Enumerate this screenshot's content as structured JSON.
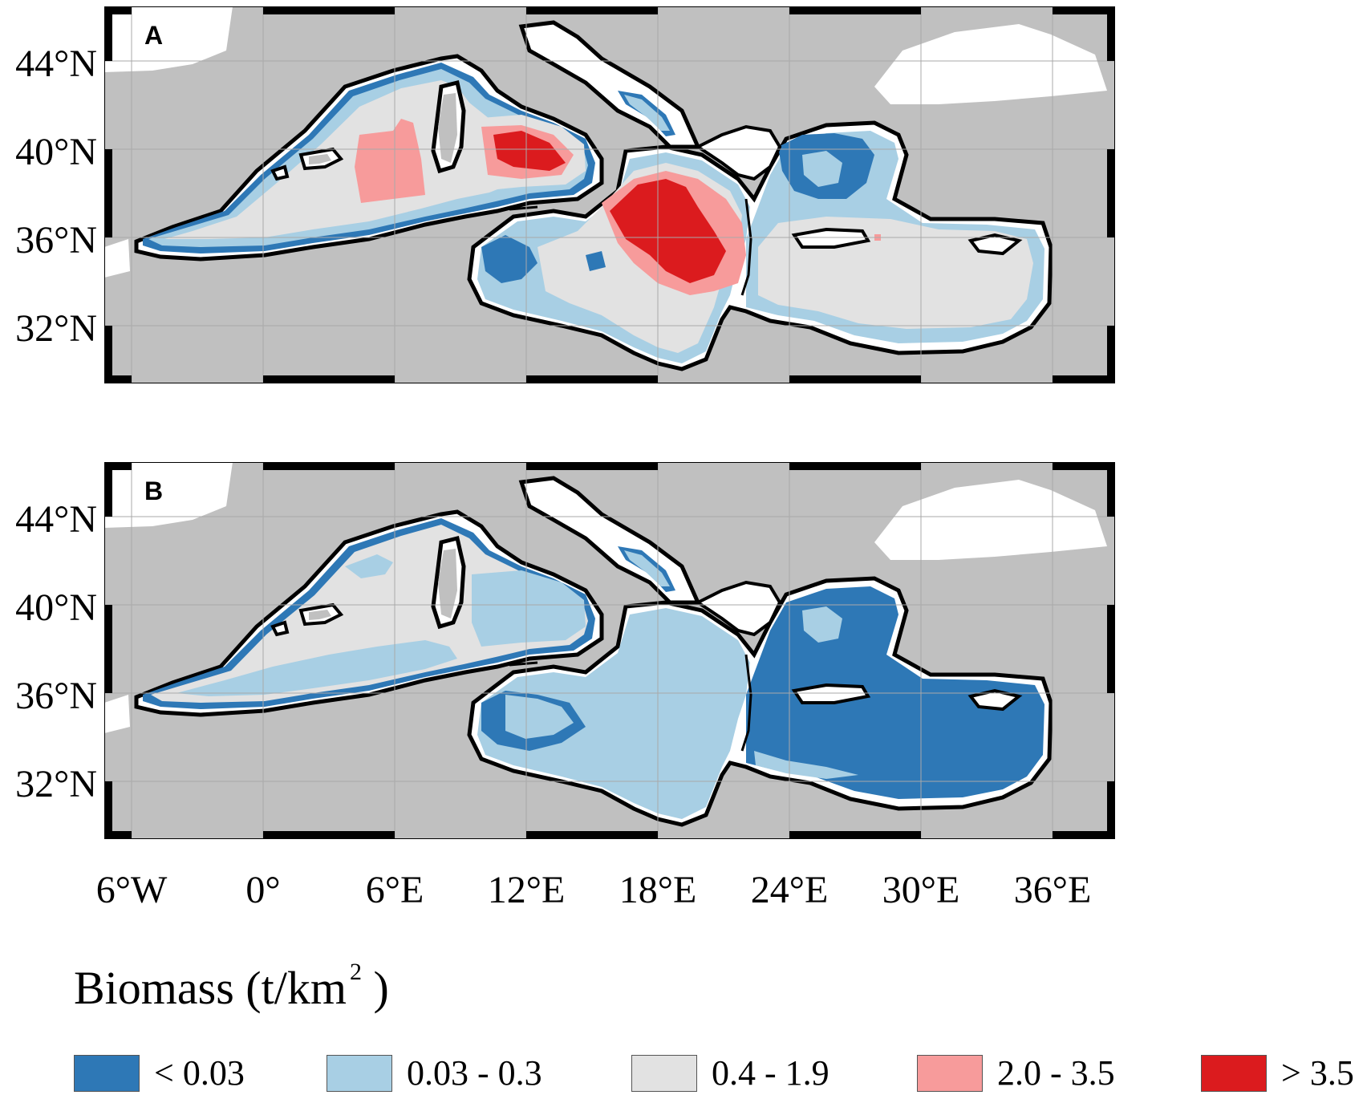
{
  "panels": [
    {
      "letter": "A"
    },
    {
      "letter": "B"
    }
  ],
  "axes": {
    "lat_labels": [
      "44°N",
      "40°N",
      "36°N",
      "32°N"
    ],
    "lon_labels": [
      "6°W",
      "0°",
      "6°E",
      "12°E",
      "18°E",
      "24°E",
      "30°E",
      "36°E"
    ]
  },
  "legend": {
    "title": "Biomass (t/km",
    "title_superscript": "2",
    "title_close": ")",
    "items": [
      {
        "label": "< 0.03",
        "color": "#2e78b6"
      },
      {
        "label": "0.03 - 0.3",
        "color": "#a8cfe4"
      },
      {
        "label": "0.4 - 1.9",
        "color": "#e2e2e2"
      },
      {
        "label": "2.0 - 3.5",
        "color": "#f79b9b"
      },
      {
        "label": "> 3.5",
        "color": "#db1b1e"
      }
    ]
  },
  "colors": {
    "land": "#c0c0c0",
    "frame_dark": "#000000",
    "frame_light": "#ffffff",
    "grid": "#a9a9a9"
  }
}
